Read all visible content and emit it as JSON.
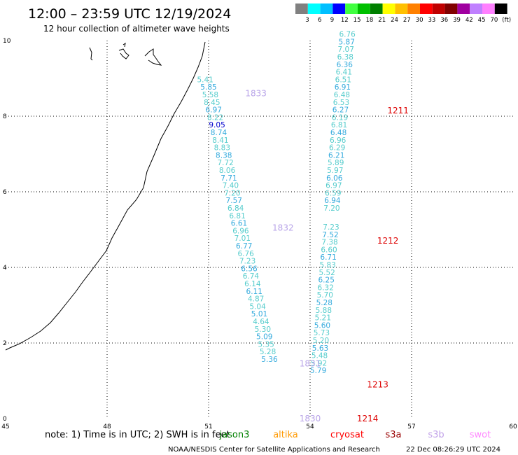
{
  "header": {
    "title": "12:00 – 23:59 UTC 12/19/2024",
    "subtitle": "12 hour collection of altimeter wave heights"
  },
  "colorbar": {
    "colors": [
      "#808080",
      "#00ffff",
      "#00bfff",
      "#0000ff",
      "#40ff40",
      "#00c000",
      "#008000",
      "#ffff00",
      "#ffc000",
      "#ff8000",
      "#ff0000",
      "#c00000",
      "#800000",
      "#a000a0",
      "#c080ff",
      "#ff80ff",
      "#000000"
    ],
    "labels": [
      "3",
      "6",
      "9",
      "12",
      "15",
      "18",
      "21",
      "24",
      "27",
      "30",
      "33",
      "36",
      "39",
      "42",
      "45",
      "70",
      "(ft)"
    ]
  },
  "axes": {
    "x_ticks": [
      "45",
      "48",
      "51",
      "54",
      "57",
      "60"
    ],
    "x_values": [
      45,
      48,
      51,
      54,
      57,
      60
    ],
    "y_ticks": [
      "0",
      "2",
      "4",
      "6",
      "8",
      "10"
    ],
    "y_values": [
      0,
      2,
      4,
      6,
      8,
      10
    ],
    "xlim": [
      45,
      60
    ],
    "ylim": [
      0,
      10
    ]
  },
  "tracks": [
    {
      "color": "#55cccc",
      "alt_color": "#33aadd",
      "points": [
        [
          50.9,
          8.9,
          "5.41"
        ],
        [
          51.0,
          8.7,
          "5.85"
        ],
        [
          51.05,
          8.5,
          "5.58"
        ],
        [
          51.1,
          8.3,
          "8.45"
        ],
        [
          51.15,
          8.1,
          "6.97"
        ],
        [
          51.2,
          7.9,
          "8.22"
        ],
        [
          51.25,
          7.7,
          "9.05"
        ],
        [
          51.3,
          7.5,
          "8.74"
        ],
        [
          51.35,
          7.3,
          "8.41"
        ],
        [
          51.4,
          7.1,
          "8.83"
        ],
        [
          51.45,
          6.9,
          "8.38"
        ],
        [
          51.5,
          6.7,
          "7.72"
        ],
        [
          51.55,
          6.5,
          "8.06"
        ],
        [
          51.6,
          6.3,
          "7.71"
        ],
        [
          51.65,
          6.1,
          "7.40"
        ],
        [
          51.7,
          5.9,
          "7.20"
        ],
        [
          51.75,
          5.7,
          "7.57"
        ],
        [
          51.8,
          5.5,
          "6.84"
        ],
        [
          51.85,
          5.3,
          "6.81"
        ],
        [
          51.9,
          5.1,
          "6.61"
        ],
        [
          51.95,
          4.9,
          "6.96"
        ],
        [
          52.0,
          4.7,
          "7.01"
        ],
        [
          52.05,
          4.5,
          "6.77"
        ],
        [
          52.1,
          4.3,
          "6.76"
        ],
        [
          52.15,
          4.1,
          "7.23"
        ],
        [
          52.2,
          3.9,
          "6.56"
        ],
        [
          52.25,
          3.7,
          "6.74"
        ],
        [
          52.3,
          3.5,
          "6.14"
        ],
        [
          52.35,
          3.3,
          "6.11"
        ],
        [
          52.4,
          3.1,
          "4.87"
        ],
        [
          52.45,
          2.9,
          "5.04"
        ],
        [
          52.5,
          2.7,
          "5.01"
        ],
        [
          52.55,
          2.5,
          "4.64"
        ],
        [
          52.6,
          2.3,
          "5.30"
        ],
        [
          52.65,
          2.1,
          "5.09"
        ],
        [
          52.7,
          1.9,
          "5.35"
        ],
        [
          52.75,
          1.7,
          "5.28"
        ],
        [
          52.8,
          1.5,
          "5.36"
        ]
      ],
      "darkblue_index": 6
    },
    {
      "color": "#55cccc",
      "alt_color": "#33aadd",
      "points": [
        [
          55.1,
          10.1,
          "6.76"
        ],
        [
          55.08,
          9.9,
          "5.87"
        ],
        [
          55.06,
          9.7,
          "7.07"
        ],
        [
          55.04,
          9.5,
          "6.38"
        ],
        [
          55.02,
          9.3,
          "6.36"
        ],
        [
          55.0,
          9.1,
          "6.41"
        ],
        [
          54.98,
          8.9,
          "6.51"
        ],
        [
          54.96,
          8.7,
          "6.91"
        ],
        [
          54.94,
          8.5,
          "6.48"
        ],
        [
          54.92,
          8.3,
          "6.53"
        ],
        [
          54.9,
          8.1,
          "6.27"
        ],
        [
          54.88,
          7.9,
          "6.19"
        ],
        [
          54.86,
          7.7,
          "6.81"
        ],
        [
          54.84,
          7.5,
          "6.48"
        ],
        [
          54.82,
          7.3,
          "6.96"
        ],
        [
          54.8,
          7.1,
          "6.29"
        ],
        [
          54.78,
          6.9,
          "6.21"
        ],
        [
          54.76,
          6.7,
          "5.89"
        ],
        [
          54.74,
          6.5,
          "5.97"
        ],
        [
          54.72,
          6.3,
          "6.06"
        ],
        [
          54.7,
          6.1,
          "6.97"
        ],
        [
          54.68,
          5.9,
          "6.59"
        ],
        [
          54.66,
          5.7,
          "6.94"
        ],
        [
          54.64,
          5.5,
          "7.20"
        ],
        [
          54.62,
          5.0,
          "7.23"
        ],
        [
          54.6,
          4.8,
          "7.52"
        ],
        [
          54.58,
          4.6,
          "7.38"
        ],
        [
          54.56,
          4.4,
          "6.60"
        ],
        [
          54.54,
          4.2,
          "6.71"
        ],
        [
          54.52,
          4.0,
          "5.83"
        ],
        [
          54.5,
          3.8,
          "5.52"
        ],
        [
          54.48,
          3.6,
          "6.25"
        ],
        [
          54.46,
          3.4,
          "6.32"
        ],
        [
          54.44,
          3.2,
          "5.70"
        ],
        [
          54.42,
          3.0,
          "5.28"
        ],
        [
          54.4,
          2.8,
          "5.88"
        ],
        [
          54.38,
          2.6,
          "5.21"
        ],
        [
          54.36,
          2.4,
          "5.60"
        ],
        [
          54.34,
          2.2,
          "5.73"
        ],
        [
          54.32,
          2.0,
          "5.20"
        ],
        [
          54.3,
          1.8,
          "5.63"
        ],
        [
          54.28,
          1.6,
          "5.48"
        ],
        [
          54.26,
          1.4,
          "5.92"
        ],
        [
          54.24,
          1.2,
          "5.79"
        ]
      ],
      "darkblue_index": -1
    }
  ],
  "pass_labels": [
    {
      "text": "1833",
      "x": 52.4,
      "y": 8.6,
      "color": "#b8a4e8"
    },
    {
      "text": "1832",
      "x": 53.2,
      "y": 5.05,
      "color": "#b8a4e8"
    },
    {
      "text": "1831",
      "x": 54.0,
      "y": 1.45,
      "color": "#b8a4e8"
    },
    {
      "text": "1830",
      "x": 54.0,
      "y": 0.0,
      "color": "#b8a4e8"
    },
    {
      "text": "1211",
      "x": 56.6,
      "y": 8.15,
      "color": "#dd0000"
    },
    {
      "text": "1212",
      "x": 56.3,
      "y": 4.7,
      "color": "#dd0000"
    },
    {
      "text": "1213",
      "x": 56.0,
      "y": 0.9,
      "color": "#dd0000"
    },
    {
      "text": "1214",
      "x": 55.7,
      "y": 0.0,
      "color": "#dd0000"
    }
  ],
  "legend": {
    "note": "note:  1) Time is in UTC; 2) SWH is in feet",
    "items": [
      {
        "label": "jason3",
        "color": "#008000"
      },
      {
        "label": "altika",
        "color": "#ff9900"
      },
      {
        "label": "cryosat",
        "color": "#ff0000"
      },
      {
        "label": "s3a",
        "color": "#990000"
      },
      {
        "label": "s3b",
        "color": "#c0a0e8"
      },
      {
        "label": "swot",
        "color": "#ff88ff"
      }
    ]
  },
  "footer": {
    "left": "NOAA/NESDIS Center for Satellite Applications and Research",
    "right": "22 Dec 08:26:29 UTC 2024"
  }
}
